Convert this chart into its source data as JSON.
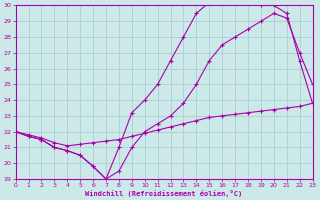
{
  "background_color": "#cce8e8",
  "grid_color": "#a8d0d0",
  "line_color": "#aa00aa",
  "xlabel": "Windchill (Refroidissement éolien,°C)",
  "xlim": [
    0,
    23
  ],
  "ylim": [
    19,
    30
  ],
  "yticks": [
    19,
    20,
    21,
    22,
    23,
    24,
    25,
    26,
    27,
    28,
    29,
    30
  ],
  "xticks": [
    0,
    1,
    2,
    3,
    4,
    5,
    6,
    7,
    8,
    9,
    10,
    11,
    12,
    13,
    14,
    15,
    16,
    17,
    18,
    19,
    20,
    21,
    22,
    23
  ],
  "series": [
    {
      "x": [
        0,
        1,
        2,
        3,
        4,
        5,
        6,
        7,
        8,
        9,
        10,
        11,
        12,
        13,
        14,
        15,
        16,
        17,
        18,
        19,
        20,
        21,
        22,
        23
      ],
      "y": [
        22.0,
        21.8,
        21.6,
        21.3,
        21.1,
        21.2,
        21.3,
        21.4,
        21.5,
        21.7,
        21.9,
        22.1,
        22.3,
        22.5,
        22.7,
        22.9,
        23.0,
        23.1,
        23.2,
        23.3,
        23.4,
        23.5,
        23.6,
        23.8
      ]
    },
    {
      "x": [
        0,
        1,
        2,
        3,
        4,
        5,
        6,
        7,
        8,
        9,
        10,
        11,
        12,
        13,
        14,
        15,
        16,
        17,
        18,
        19,
        20,
        21,
        22,
        23
      ],
      "y": [
        22.0,
        21.7,
        21.5,
        21.0,
        20.8,
        20.5,
        19.8,
        19.0,
        19.5,
        21.0,
        22.0,
        22.5,
        23.0,
        23.8,
        25.0,
        26.5,
        27.5,
        28.0,
        28.5,
        29.0,
        29.5,
        29.2,
        27.0,
        25.0
      ]
    },
    {
      "x": [
        0,
        1,
        2,
        3,
        4,
        5,
        6,
        7,
        8,
        9,
        10,
        11,
        12,
        13,
        14,
        15,
        16,
        17,
        18,
        19,
        20,
        21,
        22,
        23
      ],
      "y": [
        22.0,
        21.7,
        21.5,
        21.0,
        20.8,
        20.5,
        19.8,
        19.0,
        21.0,
        23.2,
        24.0,
        25.0,
        26.5,
        28.0,
        29.5,
        30.2,
        30.3,
        30.3,
        30.2,
        30.0,
        30.0,
        29.5,
        26.5,
        23.8
      ]
    }
  ]
}
